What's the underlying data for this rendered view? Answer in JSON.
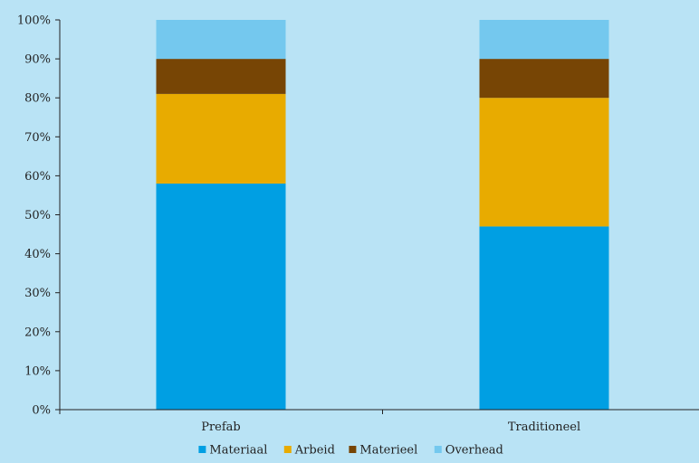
{
  "chart_data": {
    "type": "bar",
    "stacked": true,
    "percent": true,
    "categories": [
      "Prefab",
      "Traditioneel"
    ],
    "series": [
      {
        "name": "Materiaal",
        "color": "#009fe3",
        "values": [
          58,
          47
        ]
      },
      {
        "name": "Arbeid",
        "color": "#e8ab00",
        "values": [
          23,
          33
        ]
      },
      {
        "name": "Materieel",
        "color": "#774505",
        "values": [
          9,
          10
        ]
      },
      {
        "name": "Overhead",
        "color": "#74c8ee",
        "values": [
          10,
          10
        ]
      }
    ],
    "ylim": [
      0,
      100
    ],
    "yticks": [
      "0%",
      "10%",
      "20%",
      "30%",
      "40%",
      "50%",
      "60%",
      "70%",
      "80%",
      "90%",
      "100%"
    ],
    "grid": false,
    "legend": "bottom",
    "title": "",
    "xlabel": "",
    "ylabel": ""
  }
}
